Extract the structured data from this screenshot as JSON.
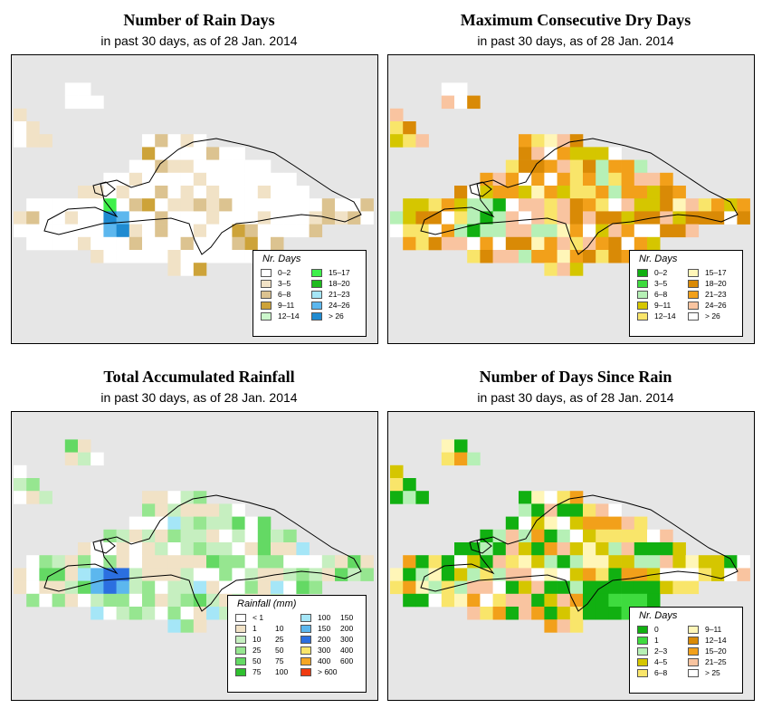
{
  "colors": {
    "ocean": "#e6e6e6",
    "coast": "#000000"
  },
  "panels": [
    {
      "id": "rain-days",
      "title": "Number of Rain Days",
      "subtitle": "in past 30 days, as of  28 Jan. 2014",
      "legend": {
        "title": "Nr. Days",
        "items": [
          {
            "label": "0–2",
            "color": "#ffffff"
          },
          {
            "label": "3–5",
            "color": "#f1e2c6"
          },
          {
            "label": "6–8",
            "color": "#dcc390"
          },
          {
            "label": "9–11",
            "color": "#cda339"
          },
          {
            "label": "12–14",
            "color": "#ccf7cc"
          },
          {
            "label": "15–17",
            "color": "#3ef04b"
          },
          {
            "label": "18–20",
            "color": "#1dbb1d"
          },
          {
            "label": "21–23",
            "color": "#a5e6f7"
          },
          {
            "label": "24–26",
            "color": "#5cb7ee"
          },
          {
            "label": "> 26",
            "color": "#1f8bd1"
          }
        ]
      }
    },
    {
      "id": "dry-days",
      "title": "Maximum Consecutive Dry Days",
      "subtitle": "in past 30 days, as of  28 Jan. 2014",
      "legend": {
        "title": "Nr. Days",
        "items": [
          {
            "label": "0–2",
            "color": "#11b011"
          },
          {
            "label": "3–5",
            "color": "#3edb3e"
          },
          {
            "label": "6–8",
            "color": "#b6f0b6"
          },
          {
            "label": "9–11",
            "color": "#d5c600"
          },
          {
            "label": "12–14",
            "color": "#f9e56a"
          },
          {
            "label": "15–17",
            "color": "#fff6b8"
          },
          {
            "label": "18–20",
            "color": "#d98a06"
          },
          {
            "label": "21–23",
            "color": "#f2a01a"
          },
          {
            "label": "24–26",
            "color": "#f9c4a0"
          },
          {
            "label": "> 26",
            "color": "#ffffff"
          }
        ]
      }
    },
    {
      "id": "rainfall",
      "title": "Total Accumulated Rainfall",
      "subtitle": "in past 30 days, as of  28 Jan. 2014",
      "legend": {
        "title": "Rainfall (mm)",
        "items": [
          {
            "label": "< 1",
            "label2": "",
            "color": "#ffffff"
          },
          {
            "label": "1",
            "label2": "10",
            "color": "#f1e2c6"
          },
          {
            "label": "10",
            "label2": "25",
            "color": "#c6efc0"
          },
          {
            "label": "25",
            "label2": "50",
            "color": "#96e690"
          },
          {
            "label": "50",
            "label2": "75",
            "color": "#64d964"
          },
          {
            "label": "75",
            "label2": "100",
            "color": "#2fc02f"
          },
          {
            "label": "100",
            "label2": "150",
            "color": "#a5e6f7"
          },
          {
            "label": "150",
            "label2": "200",
            "color": "#5cb7ee"
          },
          {
            "label": "200",
            "label2": "300",
            "color": "#2b6fe0"
          },
          {
            "label": "300",
            "label2": "400",
            "color": "#f9e56a"
          },
          {
            "label": "400",
            "label2": "600",
            "color": "#f5a623"
          },
          {
            "label": "> 600",
            "label2": "",
            "color": "#f03a10"
          }
        ]
      }
    },
    {
      "id": "days-since-rain",
      "title": "Number of Days Since Rain",
      "subtitle": "in past 30 days, as of  28 Jan. 2014",
      "legend": {
        "title": "Nr. Days",
        "items": [
          {
            "label": "0",
            "color": "#11b011"
          },
          {
            "label": "1",
            "color": "#3edb3e"
          },
          {
            "label": "2–3",
            "color": "#b6f0b6"
          },
          {
            "label": "4–5",
            "color": "#d5c600"
          },
          {
            "label": "6–8",
            "color": "#f9e56a"
          },
          {
            "label": "9–11",
            "color": "#fff6b8"
          },
          {
            "label": "12–14",
            "color": "#d98a06"
          },
          {
            "label": "15–20",
            "color": "#f2a01a"
          },
          {
            "label": "21–25",
            "color": "#f9c4a0"
          },
          {
            "label": "> 25",
            "color": "#ffffff"
          }
        ]
      }
    }
  ]
}
